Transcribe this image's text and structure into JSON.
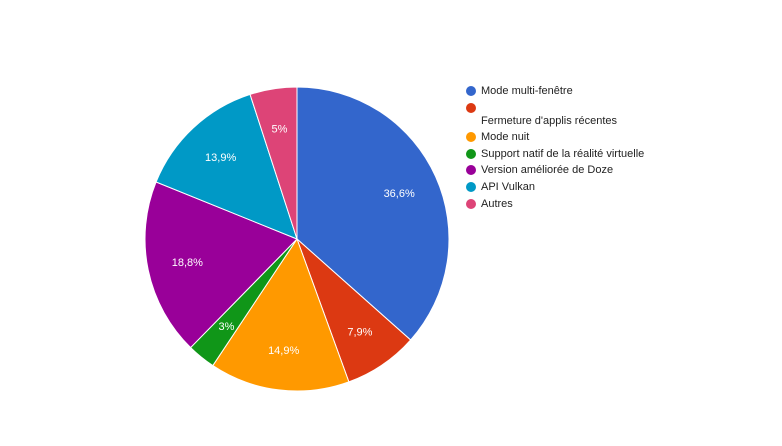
{
  "chart_data": {
    "type": "pie",
    "slices": [
      {
        "label": "Mode multi-fenêtre",
        "value": 36.6,
        "display": "36,6%",
        "color": "#3366cc"
      },
      {
        "label": "Fermeture d'applis récentes",
        "value": 7.9,
        "display": "7,9%",
        "color": "#dc3912"
      },
      {
        "label": "Mode nuit",
        "value": 14.9,
        "display": "14,9%",
        "color": "#ff9900"
      },
      {
        "label": "Support natif de la réalité virtuelle",
        "value": 3,
        "display": "3%",
        "color": "#109618"
      },
      {
        "label": "Version améliorée de Doze",
        "value": 18.8,
        "display": "18,8%",
        "color": "#990099"
      },
      {
        "label": "API Vulkan",
        "value": 13.9,
        "display": "13,9%",
        "color": "#0099c6"
      },
      {
        "label": "Autres",
        "value": 5,
        "display": "5%",
        "color": "#dd4477"
      }
    ],
    "legend_position": "right"
  }
}
